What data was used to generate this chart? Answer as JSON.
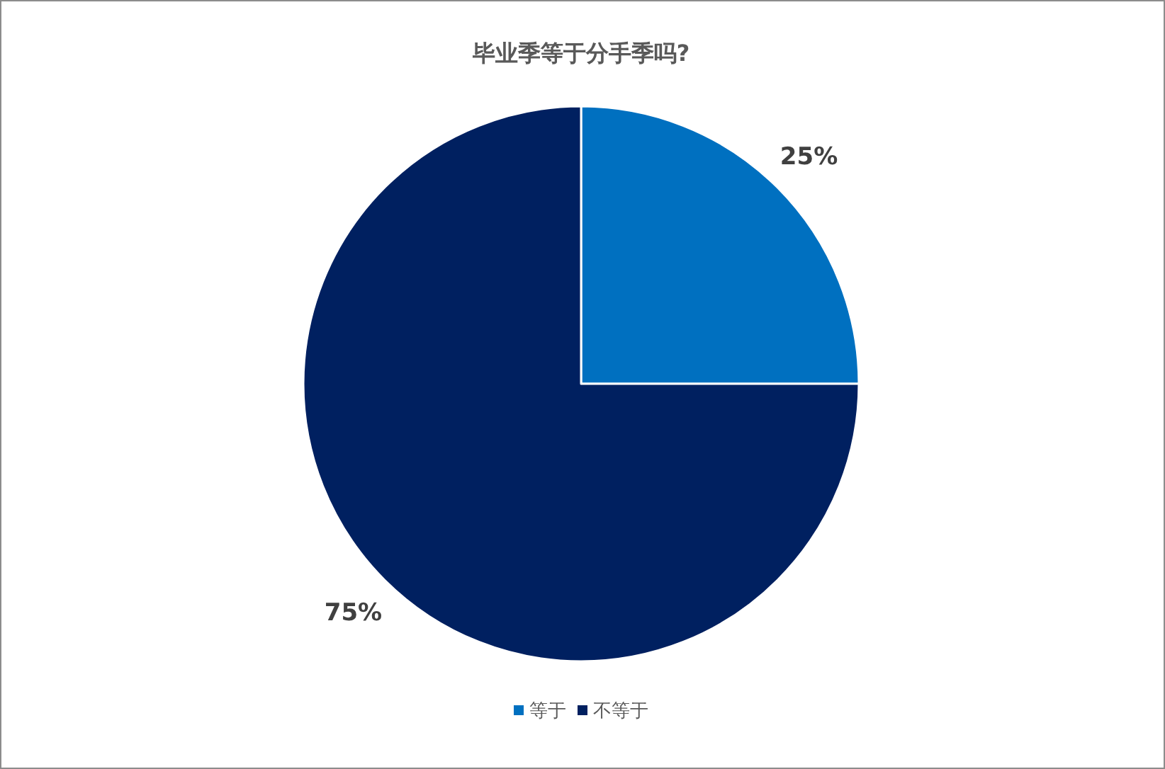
{
  "chart_data": {
    "type": "pie",
    "title": "毕业季等于分手季吗?",
    "categories": [
      "等于",
      "不等于"
    ],
    "values": [
      25,
      75
    ],
    "colors": [
      "#0070c0",
      "#002060"
    ],
    "value_labels": [
      "25%",
      "75%"
    ],
    "legend": "bottom"
  }
}
